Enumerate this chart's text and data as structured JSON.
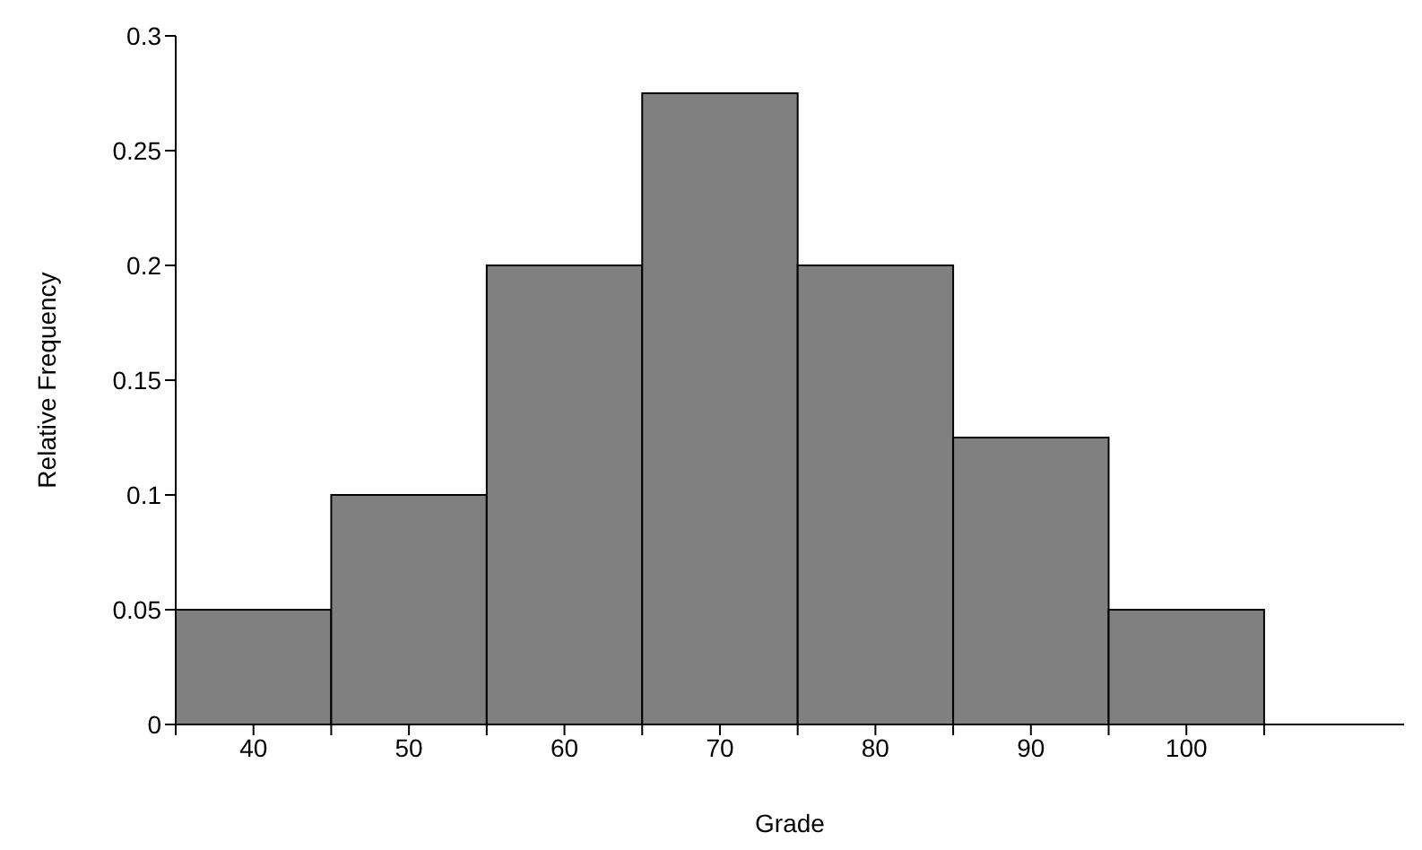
{
  "chart_data": {
    "type": "histogram",
    "xlabel": "Grade",
    "ylabel": "Relative Frequency",
    "bins": [
      35,
      45,
      55,
      65,
      75,
      85,
      95,
      105
    ],
    "values": [
      0.05,
      0.1,
      0.2,
      0.275,
      0.2,
      0.125,
      0.05
    ],
    "color": "#808080",
    "xlim": [
      35,
      114
    ],
    "xticks": [
      {
        "value": 35,
        "label": null
      },
      40,
      {
        "value": 45,
        "label": null
      },
      50,
      {
        "value": 55,
        "label": null
      },
      60,
      {
        "value": 65,
        "label": null
      },
      70,
      {
        "value": 75,
        "label": null
      },
      80,
      {
        "value": 85,
        "label": null
      },
      90,
      {
        "value": 95,
        "label": null
      },
      100,
      {
        "value": 105,
        "label": null
      }
    ],
    "ylim": [
      0,
      0.3
    ],
    "yticks": [
      0,
      0.05,
      0.1,
      0.15,
      0.2,
      0.25,
      0.3
    ],
    "grid": false,
    "legend": false
  }
}
